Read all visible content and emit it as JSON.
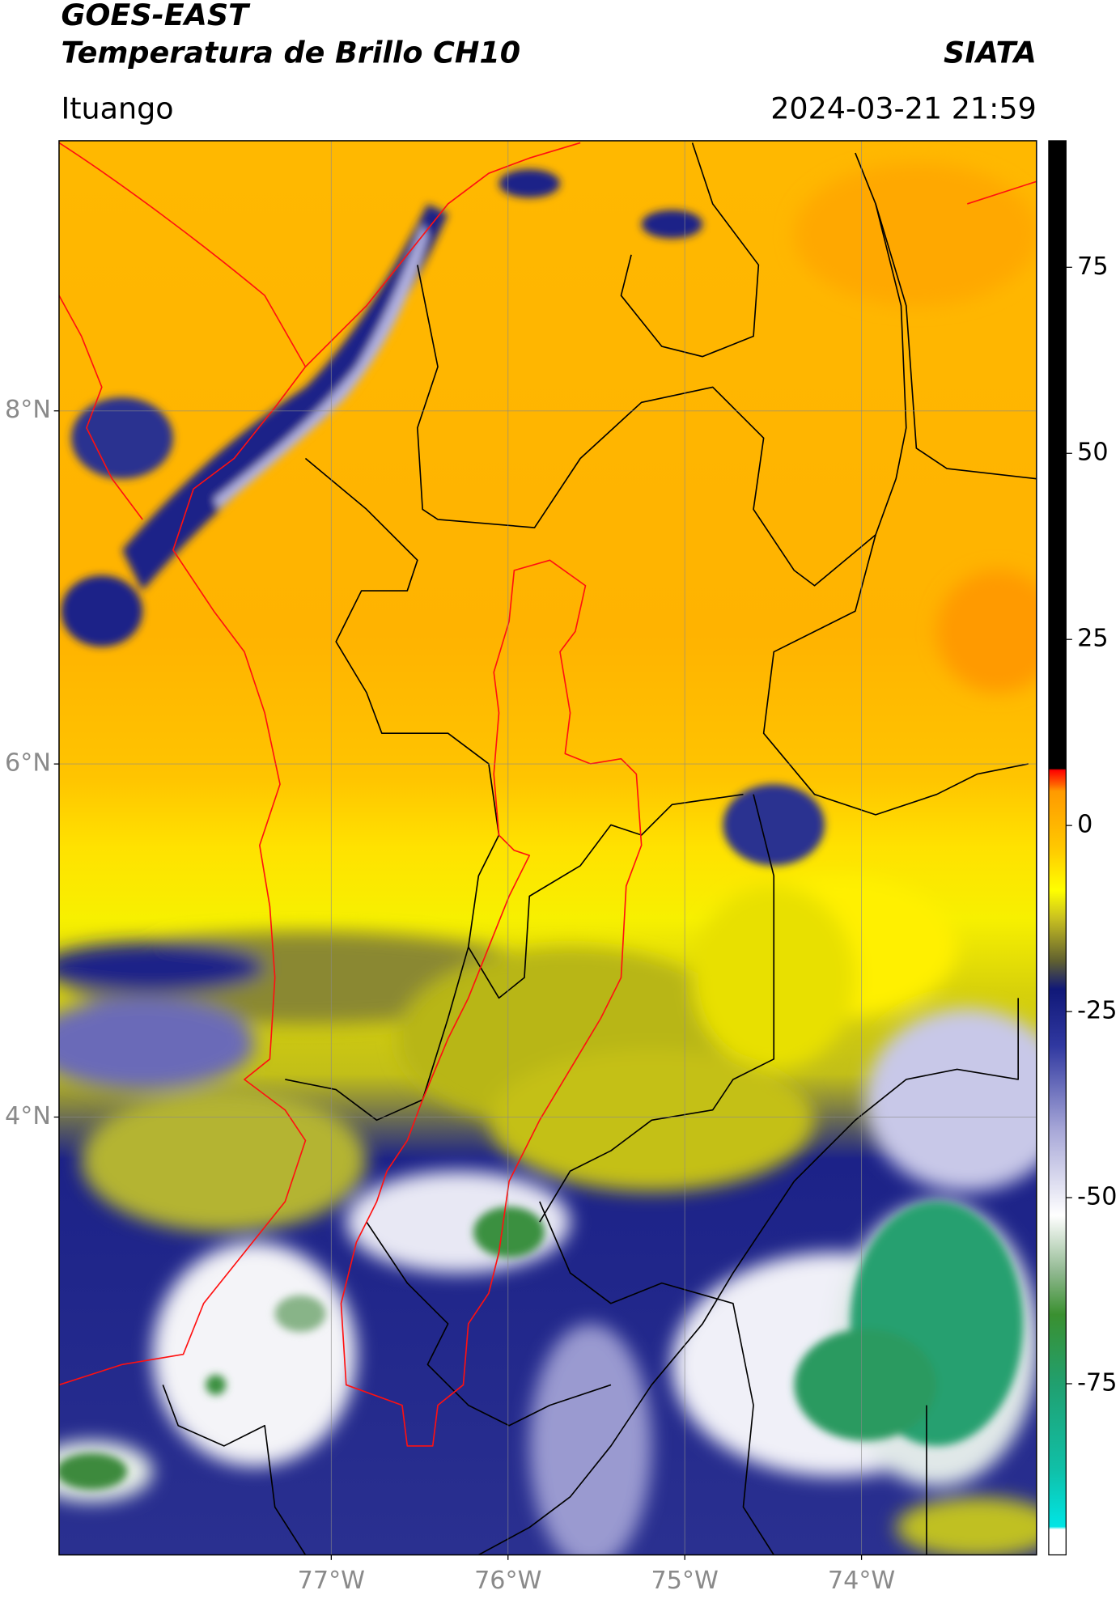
{
  "header": {
    "title": "GOES-EAST",
    "subtitle": "Temperatura de Brillo CH10",
    "agency": "SIATA",
    "region": "Ituango",
    "timestamp": "2024-03-21 21:59"
  },
  "map": {
    "lat_range": [
      1.52,
      9.53
    ],
    "lon_range": [
      -78.54,
      -73.01
    ],
    "lat_ticks": [
      {
        "value": 8,
        "label": "8°N"
      },
      {
        "value": 6,
        "label": "6°N"
      },
      {
        "value": 4,
        "label": "4°N"
      }
    ],
    "lon_ticks": [
      {
        "value": -77,
        "label": "77°W"
      },
      {
        "value": -76,
        "label": "76°W"
      },
      {
        "value": -75,
        "label": "75°W"
      },
      {
        "value": -74,
        "label": "74°W"
      }
    ],
    "grid": true
  },
  "colorbar": {
    "range": [
      -98,
      92
    ],
    "ticks": [
      75,
      50,
      25,
      0,
      -25,
      -50,
      -75
    ]
  }
}
